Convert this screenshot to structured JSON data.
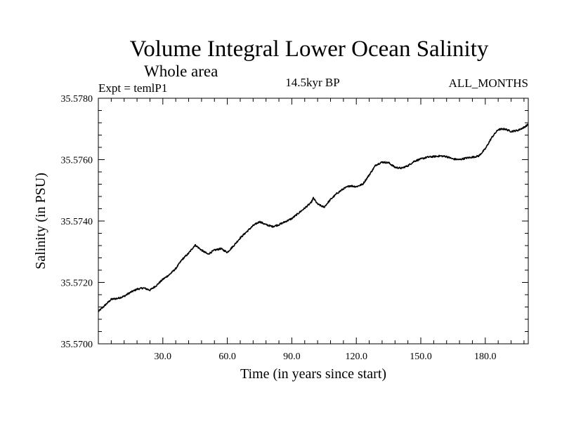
{
  "chart_data": {
    "type": "line",
    "title": "Volume Integral Lower Ocean Salinity",
    "subtitle": "Whole area",
    "experiment_label": "Expt = temlP1",
    "period_label": "14.5kyr BP",
    "months_label": "ALL_MONTHS",
    "xlabel": "Time (in years since start)",
    "ylabel": "Salinity (in PSU)",
    "xlim": [
      0,
      200
    ],
    "ylim": [
      35.57,
      35.578
    ],
    "x_ticks": [
      30,
      60,
      90,
      120,
      150,
      180
    ],
    "x_tick_labels": [
      "30.0",
      "60.0",
      "90.0",
      "120.0",
      "150.0",
      "180.0"
    ],
    "y_ticks": [
      35.57,
      35.572,
      35.574,
      35.576,
      35.578
    ],
    "y_tick_labels": [
      "35.5700",
      "35.5720",
      "35.5740",
      "35.5760",
      "35.5780"
    ],
    "series": [
      {
        "name": "Salinity",
        "color": "#000000",
        "x": [
          0,
          3,
          6,
          9,
          12,
          15,
          18,
          21,
          24,
          27,
          30,
          33,
          36,
          39,
          42,
          45,
          48,
          51,
          54,
          57,
          60,
          63,
          66,
          69,
          72,
          75,
          78,
          81,
          84,
          87,
          90,
          93,
          96,
          99,
          100,
          102,
          105,
          108,
          111,
          114,
          117,
          120,
          123,
          126,
          129,
          132,
          135,
          138,
          141,
          144,
          147,
          150,
          153,
          156,
          159,
          162,
          165,
          168,
          171,
          174,
          177,
          180,
          183,
          186,
          189,
          192,
          195,
          198,
          200
        ],
        "y": [
          35.57105,
          35.57125,
          35.57145,
          35.57148,
          35.57155,
          35.57168,
          35.57178,
          35.57182,
          35.57175,
          35.5719,
          35.5721,
          35.57225,
          35.57245,
          35.57275,
          35.57295,
          35.57322,
          35.57305,
          35.57292,
          35.57305,
          35.5731,
          35.57298,
          35.5732,
          35.57345,
          35.57365,
          35.57385,
          35.57398,
          35.57388,
          35.57382,
          35.57388,
          35.57398,
          35.57408,
          35.57425,
          35.57442,
          35.5746,
          35.57475,
          35.57455,
          35.57445,
          35.5747,
          35.5749,
          35.57505,
          35.57515,
          35.57512,
          35.5752,
          35.5755,
          35.57582,
          35.57592,
          35.5759,
          35.57575,
          35.57572,
          35.5758,
          35.57595,
          35.57602,
          35.57608,
          35.5761,
          35.57612,
          35.5761,
          35.57602,
          35.576,
          35.57605,
          35.57608,
          35.57612,
          35.57635,
          35.57672,
          35.57698,
          35.577,
          35.57692,
          35.57695,
          35.57705,
          35.57715
        ]
      }
    ]
  }
}
